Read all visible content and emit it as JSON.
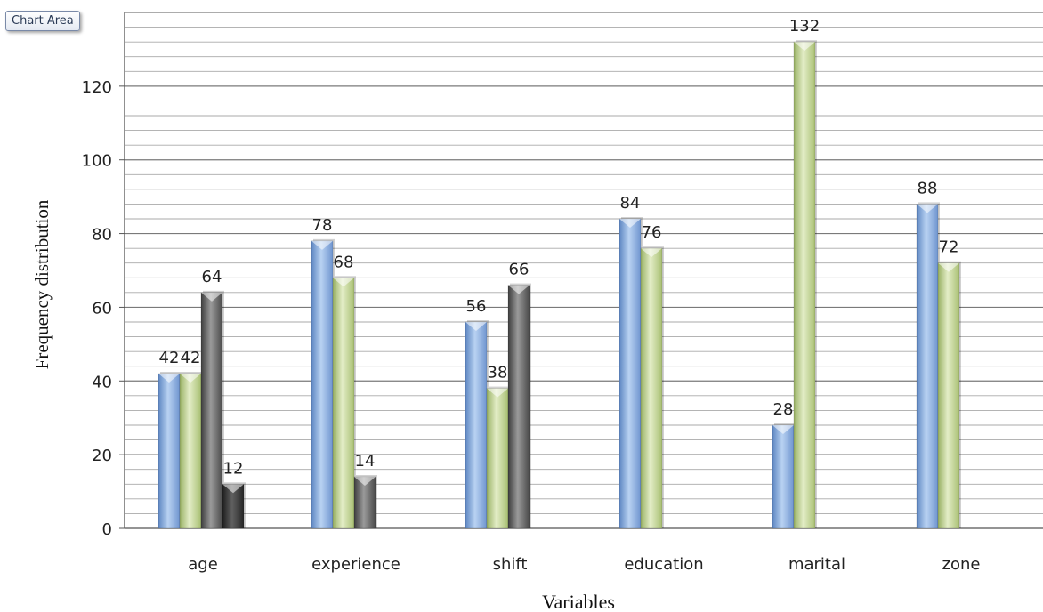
{
  "tooltip": {
    "text": "Chart Area"
  },
  "chart_data": {
    "type": "bar",
    "title": "",
    "xlabel": "Variables",
    "ylabel": "Frequency distribution",
    "ylim": [
      0,
      140
    ],
    "yticks": [
      0,
      20,
      40,
      60,
      80,
      100,
      120
    ],
    "grid": true,
    "legend": "none",
    "categories": [
      "age",
      "experience",
      "shift",
      "education",
      "marital",
      "zone"
    ],
    "series": [
      {
        "color": "#8fb4e3",
        "values": [
          42,
          78,
          56,
          84,
          28,
          88
        ]
      },
      {
        "color": "#c3d69b",
        "values": [
          42,
          68,
          38,
          76,
          132,
          72
        ]
      },
      {
        "color": "#6b6b6b",
        "values": [
          64,
          14,
          66,
          null,
          null,
          null
        ]
      },
      {
        "color": "#3f3f3f",
        "values": [
          12,
          null,
          null,
          null,
          null,
          null
        ]
      }
    ]
  }
}
